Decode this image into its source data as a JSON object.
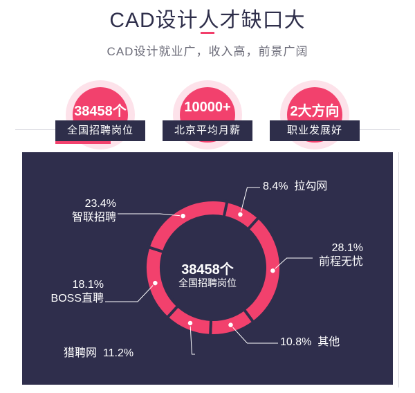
{
  "header": {
    "title": "CAD设计人才缺口大",
    "subtitle": "CAD设计就业广，收入高，前景广阔"
  },
  "stats": [
    {
      "value": "38458个",
      "label": "全国招聘岗位"
    },
    {
      "value": "10000+",
      "label": "北京平均月薪"
    },
    {
      "value": "2大方向",
      "label": "职业发展好"
    }
  ],
  "colors": {
    "accent": "#f2416d",
    "navy": "#2f2e4c",
    "halo": "#fde2ea"
  },
  "chart_data": {
    "type": "pie",
    "style": "donut",
    "center_value": "38458个",
    "center_label": "全国招聘岗位",
    "slices": [
      {
        "name": "拉勾网",
        "value": 8.4,
        "value_label": "8.4%"
      },
      {
        "name": "前程无忧",
        "value": 28.1,
        "value_label": "28.1%"
      },
      {
        "name": "其他",
        "value": 10.8,
        "value_label": "10.8%"
      },
      {
        "name": "猎聘网",
        "value": 11.2,
        "value_label": "11.2%"
      },
      {
        "name": "BOSS直聘",
        "value": 18.1,
        "value_label": "18.1%"
      },
      {
        "name": "智联招聘",
        "value": 23.4,
        "value_label": "23.4%"
      }
    ]
  }
}
